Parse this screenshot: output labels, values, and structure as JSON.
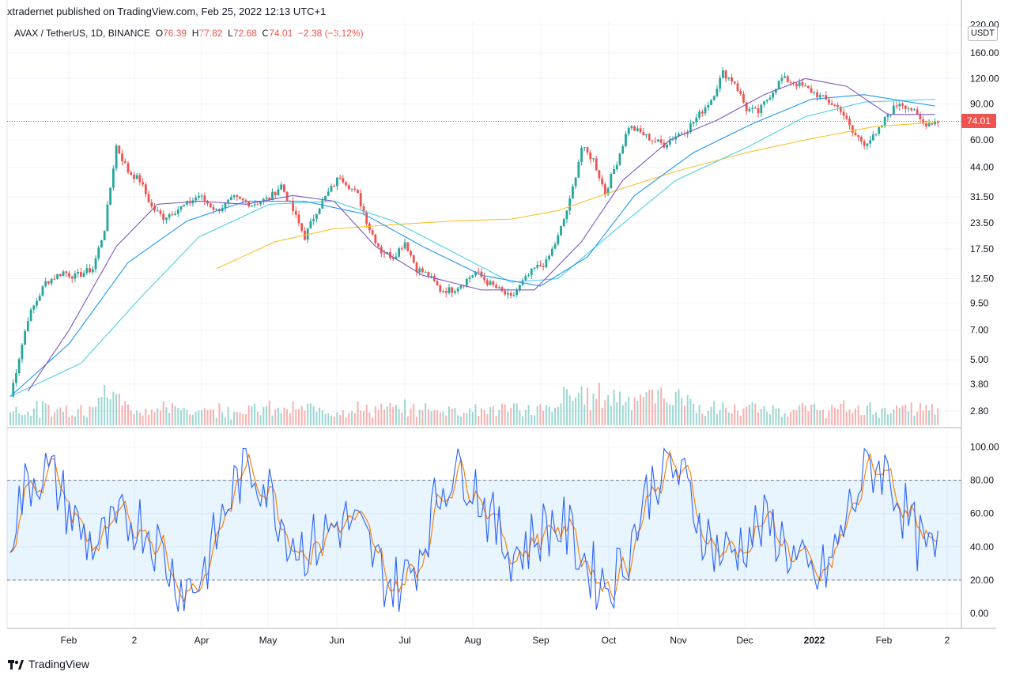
{
  "header": {
    "publisher": "xtradernet published on TradingView.com, Feb 25, 2022 12:13 UTC+1",
    "symbol": "AVAX / TetherUS, 1D, BINANCE",
    "o_label": "O",
    "o_value": "76.39",
    "h_label": "H",
    "h_value": "77.82",
    "l_label": "L",
    "l_value": "72.68",
    "c_label": "C",
    "c_value": "74.01",
    "change": "−2.38 (−3.12%)"
  },
  "currency": "USDT",
  "last_price_badge": "74.01",
  "footer": {
    "brand": "TradingView"
  },
  "colors": {
    "up": "#26a69a",
    "down": "#ef5350",
    "ma_fast": "#7e57c2",
    "ma_mid": "#2196f3",
    "ma_slow": "#4dd0e1",
    "ma_long": "#fbc02d",
    "stoch_k": "#2962ff",
    "stoch_d": "#f57c00"
  },
  "chart_data": [
    {
      "type": "candlestick",
      "scale": "log",
      "y_ticks": [
        220,
        160,
        120,
        90,
        60,
        44,
        31.5,
        23.5,
        17.5,
        12.5,
        9.5,
        7,
        5,
        3.8,
        2.8
      ],
      "y_tick_labels": [
        "220.00",
        "160.00",
        "120.00",
        "90.00",
        "60.00",
        "44.00",
        "31.50",
        "23.50",
        "17.50",
        "12.50",
        "9.50",
        "7.00",
        "5.00",
        "3.80",
        "2.80"
      ],
      "x_tick_labels": [
        "Feb",
        "2",
        "Apr",
        "May",
        "Jun",
        "Jul",
        "Aug",
        "Sep",
        "Oct",
        "Nov",
        "Dec",
        "2022",
        "Feb",
        "2"
      ],
      "last_price": 74.01,
      "close_path": [
        [
          0,
          3.3
        ],
        [
          6,
          8
        ],
        [
          12,
          12
        ],
        [
          18,
          13.5
        ],
        [
          22,
          12.8
        ],
        [
          28,
          14
        ],
        [
          32,
          22
        ],
        [
          36,
          56
        ],
        [
          40,
          42
        ],
        [
          44,
          38
        ],
        [
          48,
          28
        ],
        [
          52,
          25
        ],
        [
          56,
          27
        ],
        [
          60,
          29
        ],
        [
          64,
          32
        ],
        [
          70,
          27
        ],
        [
          76,
          31
        ],
        [
          82,
          29
        ],
        [
          88,
          31
        ],
        [
          92,
          36
        ],
        [
          96,
          27
        ],
        [
          100,
          20
        ],
        [
          104,
          27
        ],
        [
          108,
          33
        ],
        [
          112,
          40
        ],
        [
          118,
          32
        ],
        [
          122,
          22
        ],
        [
          126,
          17
        ],
        [
          130,
          16
        ],
        [
          134,
          19
        ],
        [
          138,
          14
        ],
        [
          142,
          13
        ],
        [
          146,
          11
        ],
        [
          150,
          11
        ],
        [
          154,
          12
        ],
        [
          158,
          13.5
        ],
        [
          162,
          12
        ],
        [
          166,
          11
        ],
        [
          170,
          10
        ],
        [
          174,
          12
        ],
        [
          178,
          14
        ],
        [
          182,
          15
        ],
        [
          186,
          20
        ],
        [
          190,
          30
        ],
        [
          194,
          55
        ],
        [
          198,
          48
        ],
        [
          202,
          33
        ],
        [
          206,
          47
        ],
        [
          210,
          70
        ],
        [
          214,
          65
        ],
        [
          218,
          60
        ],
        [
          222,
          57
        ],
        [
          226,
          63
        ],
        [
          230,
          68
        ],
        [
          234,
          80
        ],
        [
          238,
          95
        ],
        [
          242,
          128
        ],
        [
          246,
          115
        ],
        [
          250,
          85
        ],
        [
          254,
          82
        ],
        [
          258,
          100
        ],
        [
          262,
          120
        ],
        [
          266,
          115
        ],
        [
          270,
          108
        ],
        [
          274,
          100
        ],
        [
          278,
          92
        ],
        [
          282,
          85
        ],
        [
          286,
          65
        ],
        [
          290,
          58
        ],
        [
          294,
          63
        ],
        [
          298,
          80
        ],
        [
          302,
          92
        ],
        [
          306,
          85
        ],
        [
          310,
          72
        ],
        [
          314,
          74
        ]
      ],
      "ma_fast": [
        [
          6,
          3.5
        ],
        [
          20,
          7
        ],
        [
          36,
          18
        ],
        [
          50,
          29
        ],
        [
          64,
          30
        ],
        [
          80,
          29
        ],
        [
          96,
          32
        ],
        [
          110,
          30
        ],
        [
          124,
          18
        ],
        [
          140,
          13
        ],
        [
          160,
          11
        ],
        [
          178,
          11
        ],
        [
          194,
          19
        ],
        [
          208,
          38
        ],
        [
          224,
          60
        ],
        [
          240,
          75
        ],
        [
          256,
          100
        ],
        [
          270,
          120
        ],
        [
          284,
          110
        ],
        [
          298,
          80
        ],
        [
          314,
          80
        ]
      ],
      "ma_mid": [
        [
          0,
          3.3
        ],
        [
          20,
          6
        ],
        [
          40,
          15
        ],
        [
          60,
          24
        ],
        [
          80,
          30
        ],
        [
          100,
          30
        ],
        [
          120,
          26
        ],
        [
          140,
          18
        ],
        [
          160,
          13
        ],
        [
          180,
          11.5
        ],
        [
          196,
          16
        ],
        [
          212,
          32
        ],
        [
          232,
          52
        ],
        [
          252,
          72
        ],
        [
          272,
          95
        ],
        [
          290,
          100
        ],
        [
          314,
          88
        ]
      ],
      "ma_slow": [
        [
          0,
          3.3
        ],
        [
          24,
          4.8
        ],
        [
          44,
          10
        ],
        [
          64,
          20
        ],
        [
          88,
          29
        ],
        [
          110,
          30
        ],
        [
          130,
          24
        ],
        [
          150,
          17
        ],
        [
          170,
          12
        ],
        [
          186,
          12.5
        ],
        [
          206,
          22
        ],
        [
          226,
          38
        ],
        [
          250,
          55
        ],
        [
          270,
          78
        ],
        [
          290,
          92
        ],
        [
          314,
          95
        ]
      ],
      "ma_long": [
        [
          70,
          14
        ],
        [
          90,
          19
        ],
        [
          110,
          22
        ],
        [
          130,
          23
        ],
        [
          150,
          24
        ],
        [
          170,
          24.5
        ],
        [
          186,
          27
        ],
        [
          206,
          34
        ],
        [
          226,
          42
        ],
        [
          250,
          52
        ],
        [
          270,
          60
        ],
        [
          294,
          70
        ],
        [
          314,
          73
        ]
      ]
    },
    {
      "type": "line",
      "y_ticks": [
        100,
        80,
        60,
        40,
        20,
        0
      ],
      "y_tick_labels": [
        "100.00",
        "80.00",
        "60.00",
        "40.00",
        "20.00",
        "0.00"
      ],
      "band": [
        20,
        80
      ]
    }
  ]
}
